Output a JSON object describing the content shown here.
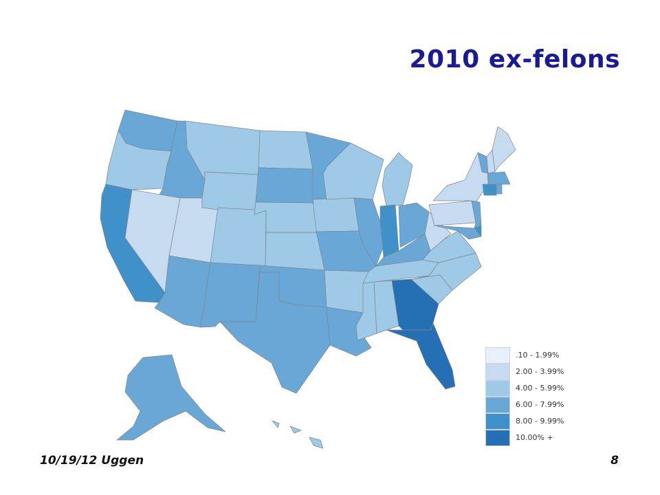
{
  "slide": {
    "title": "2010 ex-felons",
    "footer_left": "10/19/12 Uggen",
    "page_number": "8"
  },
  "legend": {
    "items": [
      {
        "label": ".10 - 1.99%",
        "color": "#e8f1fb"
      },
      {
        "label": "2.00 - 3.99%",
        "color": "#c6daf0"
      },
      {
        "label": "4.00 - 5.99%",
        "color": "#9ecae7"
      },
      {
        "label": "6.00 - 7.99%",
        "color": "#69a8d6"
      },
      {
        "label": "8.00 - 9.99%",
        "color": "#4090c9"
      },
      {
        "label": "10.00% +",
        "color": "#2570b4"
      }
    ]
  },
  "map": {
    "states": [
      {
        "name": "WA",
        "cls": 3
      },
      {
        "name": "OR",
        "cls": 2
      },
      {
        "name": "CA",
        "cls": 4
      },
      {
        "name": "ID",
        "cls": 3
      },
      {
        "name": "NV",
        "cls": 1
      },
      {
        "name": "UT",
        "cls": 1
      },
      {
        "name": "AZ",
        "cls": 3
      },
      {
        "name": "MT",
        "cls": 2
      },
      {
        "name": "WY",
        "cls": 2
      },
      {
        "name": "CO",
        "cls": 2
      },
      {
        "name": "NM",
        "cls": 3
      },
      {
        "name": "ND",
        "cls": 2
      },
      {
        "name": "SD",
        "cls": 3
      },
      {
        "name": "NE",
        "cls": 2
      },
      {
        "name": "KS",
        "cls": 2
      },
      {
        "name": "OK",
        "cls": 3
      },
      {
        "name": "TX",
        "cls": 3
      },
      {
        "name": "MN",
        "cls": 3
      },
      {
        "name": "IA",
        "cls": 2
      },
      {
        "name": "MO",
        "cls": 3
      },
      {
        "name": "AR",
        "cls": 2
      },
      {
        "name": "LA",
        "cls": 3
      },
      {
        "name": "WI",
        "cls": 2
      },
      {
        "name": "IL",
        "cls": 3
      },
      {
        "name": "MI",
        "cls": 2
      },
      {
        "name": "IN",
        "cls": 4
      },
      {
        "name": "OH",
        "cls": 3
      },
      {
        "name": "KY",
        "cls": 3
      },
      {
        "name": "TN",
        "cls": 2
      },
      {
        "name": "MS",
        "cls": 2
      },
      {
        "name": "AL",
        "cls": 2
      },
      {
        "name": "GA",
        "cls": 5
      },
      {
        "name": "FL",
        "cls": 5
      },
      {
        "name": "SC",
        "cls": 2
      },
      {
        "name": "NC",
        "cls": 2
      },
      {
        "name": "VA",
        "cls": 2
      },
      {
        "name": "WV",
        "cls": 1
      },
      {
        "name": "PA",
        "cls": 1
      },
      {
        "name": "NY",
        "cls": 1
      },
      {
        "name": "VT",
        "cls": 3
      },
      {
        "name": "NH",
        "cls": 1
      },
      {
        "name": "ME",
        "cls": 1
      },
      {
        "name": "MA",
        "cls": 3
      },
      {
        "name": "CT",
        "cls": 4
      },
      {
        "name": "RI",
        "cls": 3
      },
      {
        "name": "NJ",
        "cls": 3
      },
      {
        "name": "DE",
        "cls": 4
      },
      {
        "name": "MD",
        "cls": 3
      },
      {
        "name": "AK",
        "cls": 3
      },
      {
        "name": "HI",
        "cls": 2
      }
    ]
  }
}
